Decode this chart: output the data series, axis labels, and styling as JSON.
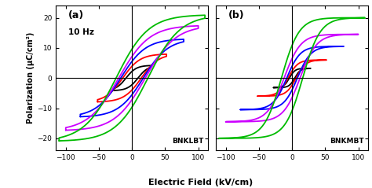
{
  "title_a": "(a)",
  "title_b": "(b)",
  "label_a": "BNKLBT",
  "label_b": "BNKMBT",
  "freq_label": "10 Hz",
  "xlabel": "Electric Field (kV/cm)",
  "ylabel": "Polarization (μC/cm²)",
  "xlim": [
    -115,
    115
  ],
  "ylim": [
    -24,
    24
  ],
  "xticks": [
    -100,
    -50,
    0,
    50,
    100
  ],
  "yticks": [
    -20,
    -10,
    0,
    10,
    20
  ],
  "loops_a": [
    {
      "color": "#000000",
      "Emax": 28,
      "Pmax": 4.2,
      "Ec": 9,
      "alpha": 0.55
    },
    {
      "color": "#ff0000",
      "Emax": 52,
      "Pmax": 8.0,
      "Ec": 14,
      "alpha": 0.5
    },
    {
      "color": "#0000ff",
      "Emax": 78,
      "Pmax": 13.0,
      "Ec": 17,
      "alpha": 0.48
    },
    {
      "color": "#cc00ff",
      "Emax": 100,
      "Pmax": 17.5,
      "Ec": 20,
      "alpha": 0.46
    },
    {
      "color": "#00bb00",
      "Emax": 110,
      "Pmax": 21.0,
      "Ec": 24,
      "alpha": 0.44
    }
  ],
  "loops_b": [
    {
      "color": "#000000",
      "Emax": 28,
      "Pmax": 3.2,
      "Ec": 4,
      "alpha": 0.3
    },
    {
      "color": "#ff0000",
      "Emax": 52,
      "Pmax": 6.0,
      "Ec": 6,
      "alpha": 0.28
    },
    {
      "color": "#0000ff",
      "Emax": 78,
      "Pmax": 10.5,
      "Ec": 8,
      "alpha": 0.26
    },
    {
      "color": "#cc00ff",
      "Emax": 100,
      "Pmax": 14.5,
      "Ec": 12,
      "alpha": 0.25
    },
    {
      "color": "#00bb00",
      "Emax": 110,
      "Pmax": 20.0,
      "Ec": 16,
      "alpha": 0.24
    }
  ],
  "bg_color": "#ffffff",
  "linewidth": 1.3
}
